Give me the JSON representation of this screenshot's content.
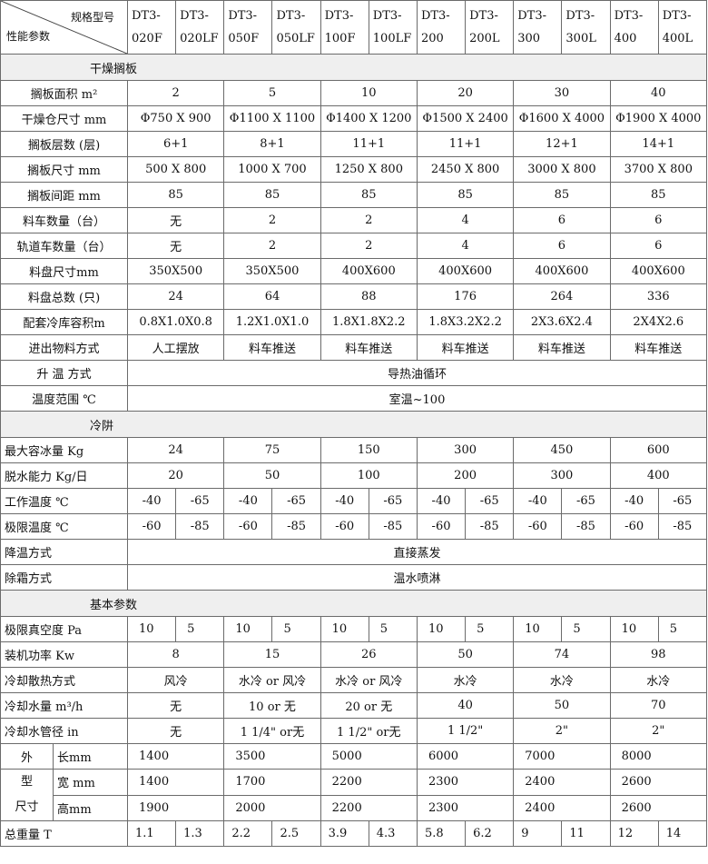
{
  "header": {
    "spec_label": "规格型号",
    "param_label": "性能参数",
    "models": [
      [
        "DT3-",
        "020F"
      ],
      [
        "DT3-",
        "020LF"
      ],
      [
        "DT3-",
        "050F"
      ],
      [
        "DT3-",
        "050LF"
      ],
      [
        "DT3-",
        "100F"
      ],
      [
        "DT3-",
        "100LF"
      ],
      [
        "DT3-",
        "200"
      ],
      [
        "DT3-",
        "200L"
      ],
      [
        "DT3-",
        "300"
      ],
      [
        "DT3-",
        "300L"
      ],
      [
        "DT3-",
        "400"
      ],
      [
        "DT3-",
        "400L"
      ]
    ]
  },
  "sections": [
    {
      "title": "干燥搁板",
      "rows": [
        {
          "label": "搁板面积 m²",
          "align": "c",
          "cells": [
            [
              "2",
              2
            ],
            [
              "5",
              2
            ],
            [
              "10",
              2
            ],
            [
              "20",
              2
            ],
            [
              "30",
              2
            ],
            [
              "40",
              2
            ]
          ]
        },
        {
          "label": "干燥仓尺寸 mm",
          "align": "c",
          "cells": [
            [
              "Φ750 X 900",
              2
            ],
            [
              "Φ1100 X 1100",
              2
            ],
            [
              "Φ1400 X 1200",
              2
            ],
            [
              "Φ1500 X 2400",
              2
            ],
            [
              "Φ1600 X 4000",
              2
            ],
            [
              "Φ1900 X 4000",
              2
            ]
          ]
        },
        {
          "label": "搁板层数 (层)",
          "align": "c",
          "cells": [
            [
              "6+1",
              2
            ],
            [
              "8+1",
              2
            ],
            [
              "11+1",
              2
            ],
            [
              "11+1",
              2
            ],
            [
              "12+1",
              2
            ],
            [
              "14+1",
              2
            ]
          ]
        },
        {
          "label": "搁板尺寸 mm",
          "align": "c",
          "cells": [
            [
              "500 X 800",
              2
            ],
            [
              "1000 X 700",
              2
            ],
            [
              "1250 X 800",
              2
            ],
            [
              "2450 X 800",
              2
            ],
            [
              "3000 X 800",
              2
            ],
            [
              "3700 X 800",
              2
            ]
          ]
        },
        {
          "label": "搁板间距 mm",
          "align": "c",
          "cells": [
            [
              "85",
              2
            ],
            [
              "85",
              2
            ],
            [
              "85",
              2
            ],
            [
              "85",
              2
            ],
            [
              "85",
              2
            ],
            [
              "85",
              2
            ]
          ]
        },
        {
          "label": "料车数量（台）",
          "align": "c",
          "cells": [
            [
              "无",
              2
            ],
            [
              "2",
              2
            ],
            [
              "2",
              2
            ],
            [
              "4",
              2
            ],
            [
              "6",
              2
            ],
            [
              "6",
              2
            ]
          ]
        },
        {
          "label": "轨道车数量（台）",
          "align": "c",
          "cells": [
            [
              "无",
              2
            ],
            [
              "2",
              2
            ],
            [
              "2",
              2
            ],
            [
              "4",
              2
            ],
            [
              "6",
              2
            ],
            [
              "6",
              2
            ]
          ]
        },
        {
          "label": "料盘尺寸mm",
          "align": "c",
          "cells": [
            [
              "350X500",
              2
            ],
            [
              "350X500",
              2
            ],
            [
              "400X600",
              2
            ],
            [
              "400X600",
              2
            ],
            [
              "400X600",
              2
            ],
            [
              "400X600",
              2
            ]
          ]
        },
        {
          "label": "料盘总数 (只)",
          "align": "c",
          "cells": [
            [
              "24",
              2
            ],
            [
              "64",
              2
            ],
            [
              "88",
              2
            ],
            [
              "176",
              2
            ],
            [
              "264",
              2
            ],
            [
              "336",
              2
            ]
          ]
        },
        {
          "label": "配套冷库容积m",
          "align": "c",
          "cells": [
            [
              "0.8X1.0X0.8",
              2
            ],
            [
              "1.2X1.0X1.0",
              2
            ],
            [
              "1.8X1.8X2.2",
              2
            ],
            [
              "1.8X3.2X2.2",
              2
            ],
            [
              "2X3.6X2.4",
              2
            ],
            [
              "2X4X2.6",
              2
            ]
          ]
        },
        {
          "label": "进出物料方式",
          "align": "c",
          "cells": [
            [
              "人工摆放",
              2
            ],
            [
              "料车推送",
              2
            ],
            [
              "料车推送",
              2
            ],
            [
              "料车推送",
              2
            ],
            [
              "料车推送",
              2
            ],
            [
              "料车推送",
              2
            ]
          ]
        },
        {
          "label": "升 温 方式",
          "align": "c",
          "cells": [
            [
              "导热油循环",
              12
            ]
          ]
        },
        {
          "label": "温度范围 ℃",
          "align": "c",
          "cells": [
            [
              "室温~100",
              12
            ]
          ]
        }
      ]
    },
    {
      "title": "冷阱",
      "rows": [
        {
          "label": "最大容冰量 Kg",
          "align": "c",
          "labl": true,
          "cells": [
            [
              "24",
              2
            ],
            [
              "75",
              2
            ],
            [
              "150",
              2
            ],
            [
              "300",
              2
            ],
            [
              "450",
              2
            ],
            [
              "600",
              2
            ]
          ]
        },
        {
          "label": "脱水能力 Kg/日",
          "align": "c",
          "labl": true,
          "cells": [
            [
              "20",
              2
            ],
            [
              "50",
              2
            ],
            [
              "100",
              2
            ],
            [
              "200",
              2
            ],
            [
              "300",
              2
            ],
            [
              "400",
              2
            ]
          ]
        },
        {
          "label": "工作温度 ℃",
          "align": "c",
          "labl": true,
          "cells": [
            [
              "-40",
              1
            ],
            [
              "-65",
              1
            ],
            [
              "-40",
              1
            ],
            [
              "-65",
              1
            ],
            [
              "-40",
              1
            ],
            [
              "-65",
              1
            ],
            [
              "-40",
              1
            ],
            [
              "-65",
              1
            ],
            [
              "-40",
              1
            ],
            [
              "-65",
              1
            ],
            [
              "-40",
              1
            ],
            [
              "-65",
              1
            ]
          ]
        },
        {
          "label": "极限温度 ℃",
          "align": "c",
          "labl": true,
          "cells": [
            [
              "-60",
              1
            ],
            [
              "-85",
              1
            ],
            [
              "-60",
              1
            ],
            [
              "-85",
              1
            ],
            [
              "-60",
              1
            ],
            [
              "-85",
              1
            ],
            [
              "-60",
              1
            ],
            [
              "-85",
              1
            ],
            [
              "-60",
              1
            ],
            [
              "-85",
              1
            ],
            [
              "-60",
              1
            ],
            [
              "-85",
              1
            ]
          ]
        },
        {
          "label": "降温方式",
          "align": "c",
          "labl": true,
          "cells": [
            [
              "直接蒸发",
              12
            ]
          ]
        },
        {
          "label": "除霜方式",
          "align": "c",
          "labl": true,
          "cells": [
            [
              "温水喷淋",
              12
            ]
          ]
        }
      ]
    },
    {
      "title": "基本参数",
      "rows": [
        {
          "label": "极限真空度 Pa",
          "align": "l",
          "labl": true,
          "cells": [
            [
              "10",
              1
            ],
            [
              "5",
              1
            ],
            [
              "10",
              1
            ],
            [
              "5",
              1
            ],
            [
              "10",
              1
            ],
            [
              "5",
              1
            ],
            [
              "10",
              1
            ],
            [
              "5",
              1
            ],
            [
              "10",
              1
            ],
            [
              "5",
              1
            ],
            [
              "10",
              1
            ],
            [
              "5",
              1
            ]
          ]
        },
        {
          "label": "装机功率 Kw",
          "align": "c",
          "labl": true,
          "cells": [
            [
              "8",
              2
            ],
            [
              "15",
              2
            ],
            [
              "26",
              2
            ],
            [
              "50",
              2
            ],
            [
              "74",
              2
            ],
            [
              "98",
              2
            ]
          ]
        },
        {
          "label": "冷却散热方式",
          "align": "c",
          "labl": true,
          "cells": [
            [
              "风冷",
              2
            ],
            [
              "水冷 or 风冷",
              2
            ],
            [
              "水冷 or 风冷",
              2
            ],
            [
              "水冷",
              2
            ],
            [
              "水冷",
              2
            ],
            [
              "水冷",
              2
            ]
          ]
        },
        {
          "label": "冷却水量 m³/h",
          "align": "c",
          "labl": true,
          "cells": [
            [
              "无",
              2
            ],
            [
              "10 or 无",
              2
            ],
            [
              "20 or 无",
              2
            ],
            [
              "40",
              2
            ],
            [
              "50",
              2
            ],
            [
              "70",
              2
            ]
          ]
        },
        {
          "label": "冷却水管径 in",
          "align": "c",
          "labl": true,
          "cells": [
            [
              "无",
              2
            ],
            [
              "1 1/4\" or无",
              2
            ],
            [
              "1 1/2\" or无",
              2
            ],
            [
              "1 1/2\"",
              2
            ],
            [
              "2\"",
              2
            ],
            [
              "2\"",
              2
            ]
          ]
        }
      ]
    }
  ],
  "dimensions": {
    "group_top": "外",
    "group_bottom": [
      "型",
      "尺寸"
    ],
    "rows": [
      {
        "label": "长mm",
        "cells": [
          "1400",
          "3500",
          "5000",
          "6000",
          "7000",
          "8000"
        ]
      },
      {
        "label": "宽 mm",
        "cells": [
          "1400",
          "1700",
          "2200",
          "2300",
          "2400",
          "2600"
        ]
      },
      {
        "label": "高mm",
        "cells": [
          "1900",
          "2000",
          "2200",
          "2300",
          "2400",
          "2600"
        ]
      }
    ]
  },
  "weight": {
    "label": "总重量  T",
    "cells": [
      "1.1",
      "1.3",
      "2.2",
      "2.5",
      "3.9",
      "4.3",
      "5.8",
      "6.2",
      "9",
      "11",
      "12",
      "14"
    ]
  }
}
